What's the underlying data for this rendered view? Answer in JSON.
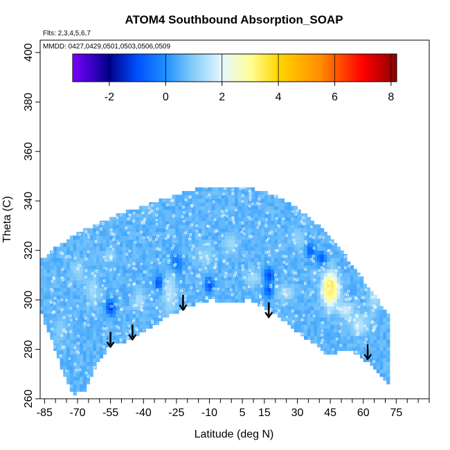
{
  "chart_data": {
    "type": "heatmap",
    "title": "ATOM4 Southbound Absorption_SOAP",
    "annotations": {
      "flights": "Flts: 2,3,4,5,6,7",
      "dates": "MMDD: 0427,0429,0501,0503,0506,0509"
    },
    "xlabel": "Latitude (deg N)",
    "ylabel": "Theta (C)",
    "xlim": [
      -87,
      90
    ],
    "ylim": [
      260,
      405
    ],
    "x_ticks": [
      -85,
      -70,
      -55,
      -40,
      -25,
      -10,
      5,
      15,
      30,
      45,
      60,
      75
    ],
    "x_tick_labels": [
      "-85",
      "-70",
      "-55",
      "-40",
      "-25",
      "-10",
      "5",
      "15",
      "30",
      "45",
      "60",
      "75"
    ],
    "x_minor_ticks": [
      -80,
      -75,
      -65,
      -60,
      -50,
      -45,
      -35,
      -30,
      -20,
      -15,
      -5,
      0,
      10,
      20,
      25,
      35,
      40,
      50,
      55,
      65,
      70,
      80,
      85,
      90
    ],
    "y_ticks": [
      260,
      280,
      300,
      320,
      340,
      360,
      380,
      400
    ],
    "y_tick_labels": [
      "260",
      "280",
      "300",
      "320",
      "340",
      "360",
      "380",
      "400"
    ],
    "colorbar": {
      "min": -3.3,
      "max": 8.2,
      "ticks": [
        -2,
        0,
        2,
        4,
        6,
        8
      ],
      "tick_labels": [
        "-2",
        "0",
        "2",
        "4",
        "6",
        "8"
      ],
      "colors": [
        "#7b00ff",
        "#00008b",
        "#0050ff",
        "#1e90ff",
        "#87cefa",
        "#e6f7ff",
        "#ffff99",
        "#ffd700",
        "#ff8c00",
        "#ff0000",
        "#8b0000"
      ],
      "color_stops": [
        -3.3,
        -2.0,
        -1.0,
        0.0,
        1.0,
        2.0,
        3.0,
        4.0,
        5.5,
        7.0,
        8.2
      ]
    },
    "background_value": 0.6,
    "domain_top": [
      [
        -87,
        316
      ],
      [
        -80,
        321
      ],
      [
        -70,
        327
      ],
      [
        -60,
        331
      ],
      [
        -50,
        335
      ],
      [
        -40,
        338
      ],
      [
        -30,
        341
      ],
      [
        -20,
        344
      ],
      [
        -10,
        346
      ],
      [
        0,
        346
      ],
      [
        10,
        345
      ],
      [
        20,
        342
      ],
      [
        30,
        337
      ],
      [
        40,
        330
      ],
      [
        50,
        320
      ],
      [
        60,
        308
      ],
      [
        70,
        296
      ],
      [
        75,
        289
      ]
    ],
    "domain_bottom": [
      [
        -87,
        296
      ],
      [
        -82,
        284
      ],
      [
        -77,
        272
      ],
      [
        -72,
        262
      ],
      [
        -66,
        264
      ],
      [
        -60,
        276
      ],
      [
        -55,
        282
      ],
      [
        -48,
        283
      ],
      [
        -40,
        287
      ],
      [
        -30,
        293
      ],
      [
        -20,
        297
      ],
      [
        -10,
        300
      ],
      [
        0,
        299
      ],
      [
        8,
        300
      ],
      [
        14,
        297
      ],
      [
        22,
        293
      ],
      [
        30,
        287
      ],
      [
        38,
        282
      ],
      [
        45,
        277
      ],
      [
        50,
        280
      ],
      [
        55,
        279
      ],
      [
        60,
        276
      ],
      [
        68,
        270
      ],
      [
        72,
        266
      ]
    ],
    "features": [
      {
        "lat": 45,
        "theta": 305,
        "dlat": 2.5,
        "dtheta": 4,
        "value": 6.0
      },
      {
        "lat": 45,
        "theta": 304,
        "dlat": 3.5,
        "dtheta": 6.5,
        "value": 3.2
      },
      {
        "lat": -55,
        "theta": 297,
        "dlat": 2,
        "dtheta": 3,
        "value": -1.3
      },
      {
        "lat": -33,
        "theta": 307,
        "dlat": 2,
        "dtheta": 3,
        "value": -1.1
      },
      {
        "lat": -10,
        "theta": 306,
        "dlat": 2,
        "dtheta": 3,
        "value": -1.0
      },
      {
        "lat": 17,
        "theta": 310,
        "dlat": 2.5,
        "dtheta": 3,
        "value": -1.2
      },
      {
        "lat": 17,
        "theta": 304,
        "dlat": 2,
        "dtheta": 2.5,
        "value": -1.0
      },
      {
        "lat": 36,
        "theta": 320,
        "dlat": 2,
        "dtheta": 3,
        "value": -0.8
      },
      {
        "lat": 41,
        "theta": 317,
        "dlat": 2,
        "dtheta": 2.5,
        "value": -0.9
      },
      {
        "lat": -25,
        "theta": 315,
        "dlat": 3,
        "dtheta": 4,
        "value": -0.5
      },
      {
        "lat": -63,
        "theta": 304,
        "dlat": 3,
        "dtheta": 6,
        "value": 1.3
      },
      {
        "lat": -70,
        "theta": 312,
        "dlat": 3,
        "dtheta": 4,
        "value": 1.2
      },
      {
        "lat": -42,
        "theta": 300,
        "dlat": 2.5,
        "dtheta": 4,
        "value": 1.4
      },
      {
        "lat": -28,
        "theta": 303,
        "dlat": 3,
        "dtheta": 8,
        "value": 1.5
      },
      {
        "lat": -12,
        "theta": 318,
        "dlat": 4,
        "dtheta": 4,
        "value": 1.2
      },
      {
        "lat": 0,
        "theta": 323,
        "dlat": 3,
        "dtheta": 4,
        "value": 1.3
      },
      {
        "lat": 10,
        "theta": 309,
        "dlat": 4,
        "dtheta": 3,
        "value": 1.3
      },
      {
        "lat": 25,
        "theta": 303,
        "dlat": 4,
        "dtheta": 3,
        "value": 1.4
      },
      {
        "lat": 52,
        "theta": 296,
        "dlat": 4,
        "dtheta": 3,
        "value": 1.8
      },
      {
        "lat": 58,
        "theta": 290,
        "dlat": 4,
        "dtheta": 4,
        "value": 1.6
      },
      {
        "lat": 65,
        "theta": 302,
        "dlat": 3,
        "dtheta": 7,
        "value": 1.4
      },
      {
        "lat": -55,
        "theta": 318,
        "dlat": 3,
        "dtheta": 3,
        "value": 1.2
      },
      {
        "lat": 30,
        "theta": 325,
        "dlat": 3,
        "dtheta": 4,
        "value": 1.1
      },
      {
        "lat": -78,
        "theta": 288,
        "dlat": 3,
        "dtheta": 6,
        "value": 1.0
      }
    ],
    "flight_tracks_lat": [
      -81,
      -77,
      -74,
      -70,
      -66,
      -62,
      -58,
      -54,
      -51,
      -47,
      -44,
      -40,
      -37,
      -33,
      -29,
      -26,
      -22,
      -18,
      -15,
      -11,
      -7,
      -3,
      1,
      5,
      9,
      13,
      17,
      21,
      25,
      29,
      33,
      37,
      41,
      45,
      49,
      53,
      57,
      61,
      65
    ],
    "arrows": [
      {
        "lat": -55,
        "theta_top": 287,
        "theta_bottom": 281
      },
      {
        "lat": -45,
        "theta_top": 290,
        "theta_bottom": 284
      },
      {
        "lat": -22,
        "theta_top": 302,
        "theta_bottom": 296
      },
      {
        "lat": 17,
        "theta_top": 299,
        "theta_bottom": 293
      },
      {
        "lat": 62,
        "theta_top": 282,
        "theta_bottom": 276
      }
    ]
  }
}
